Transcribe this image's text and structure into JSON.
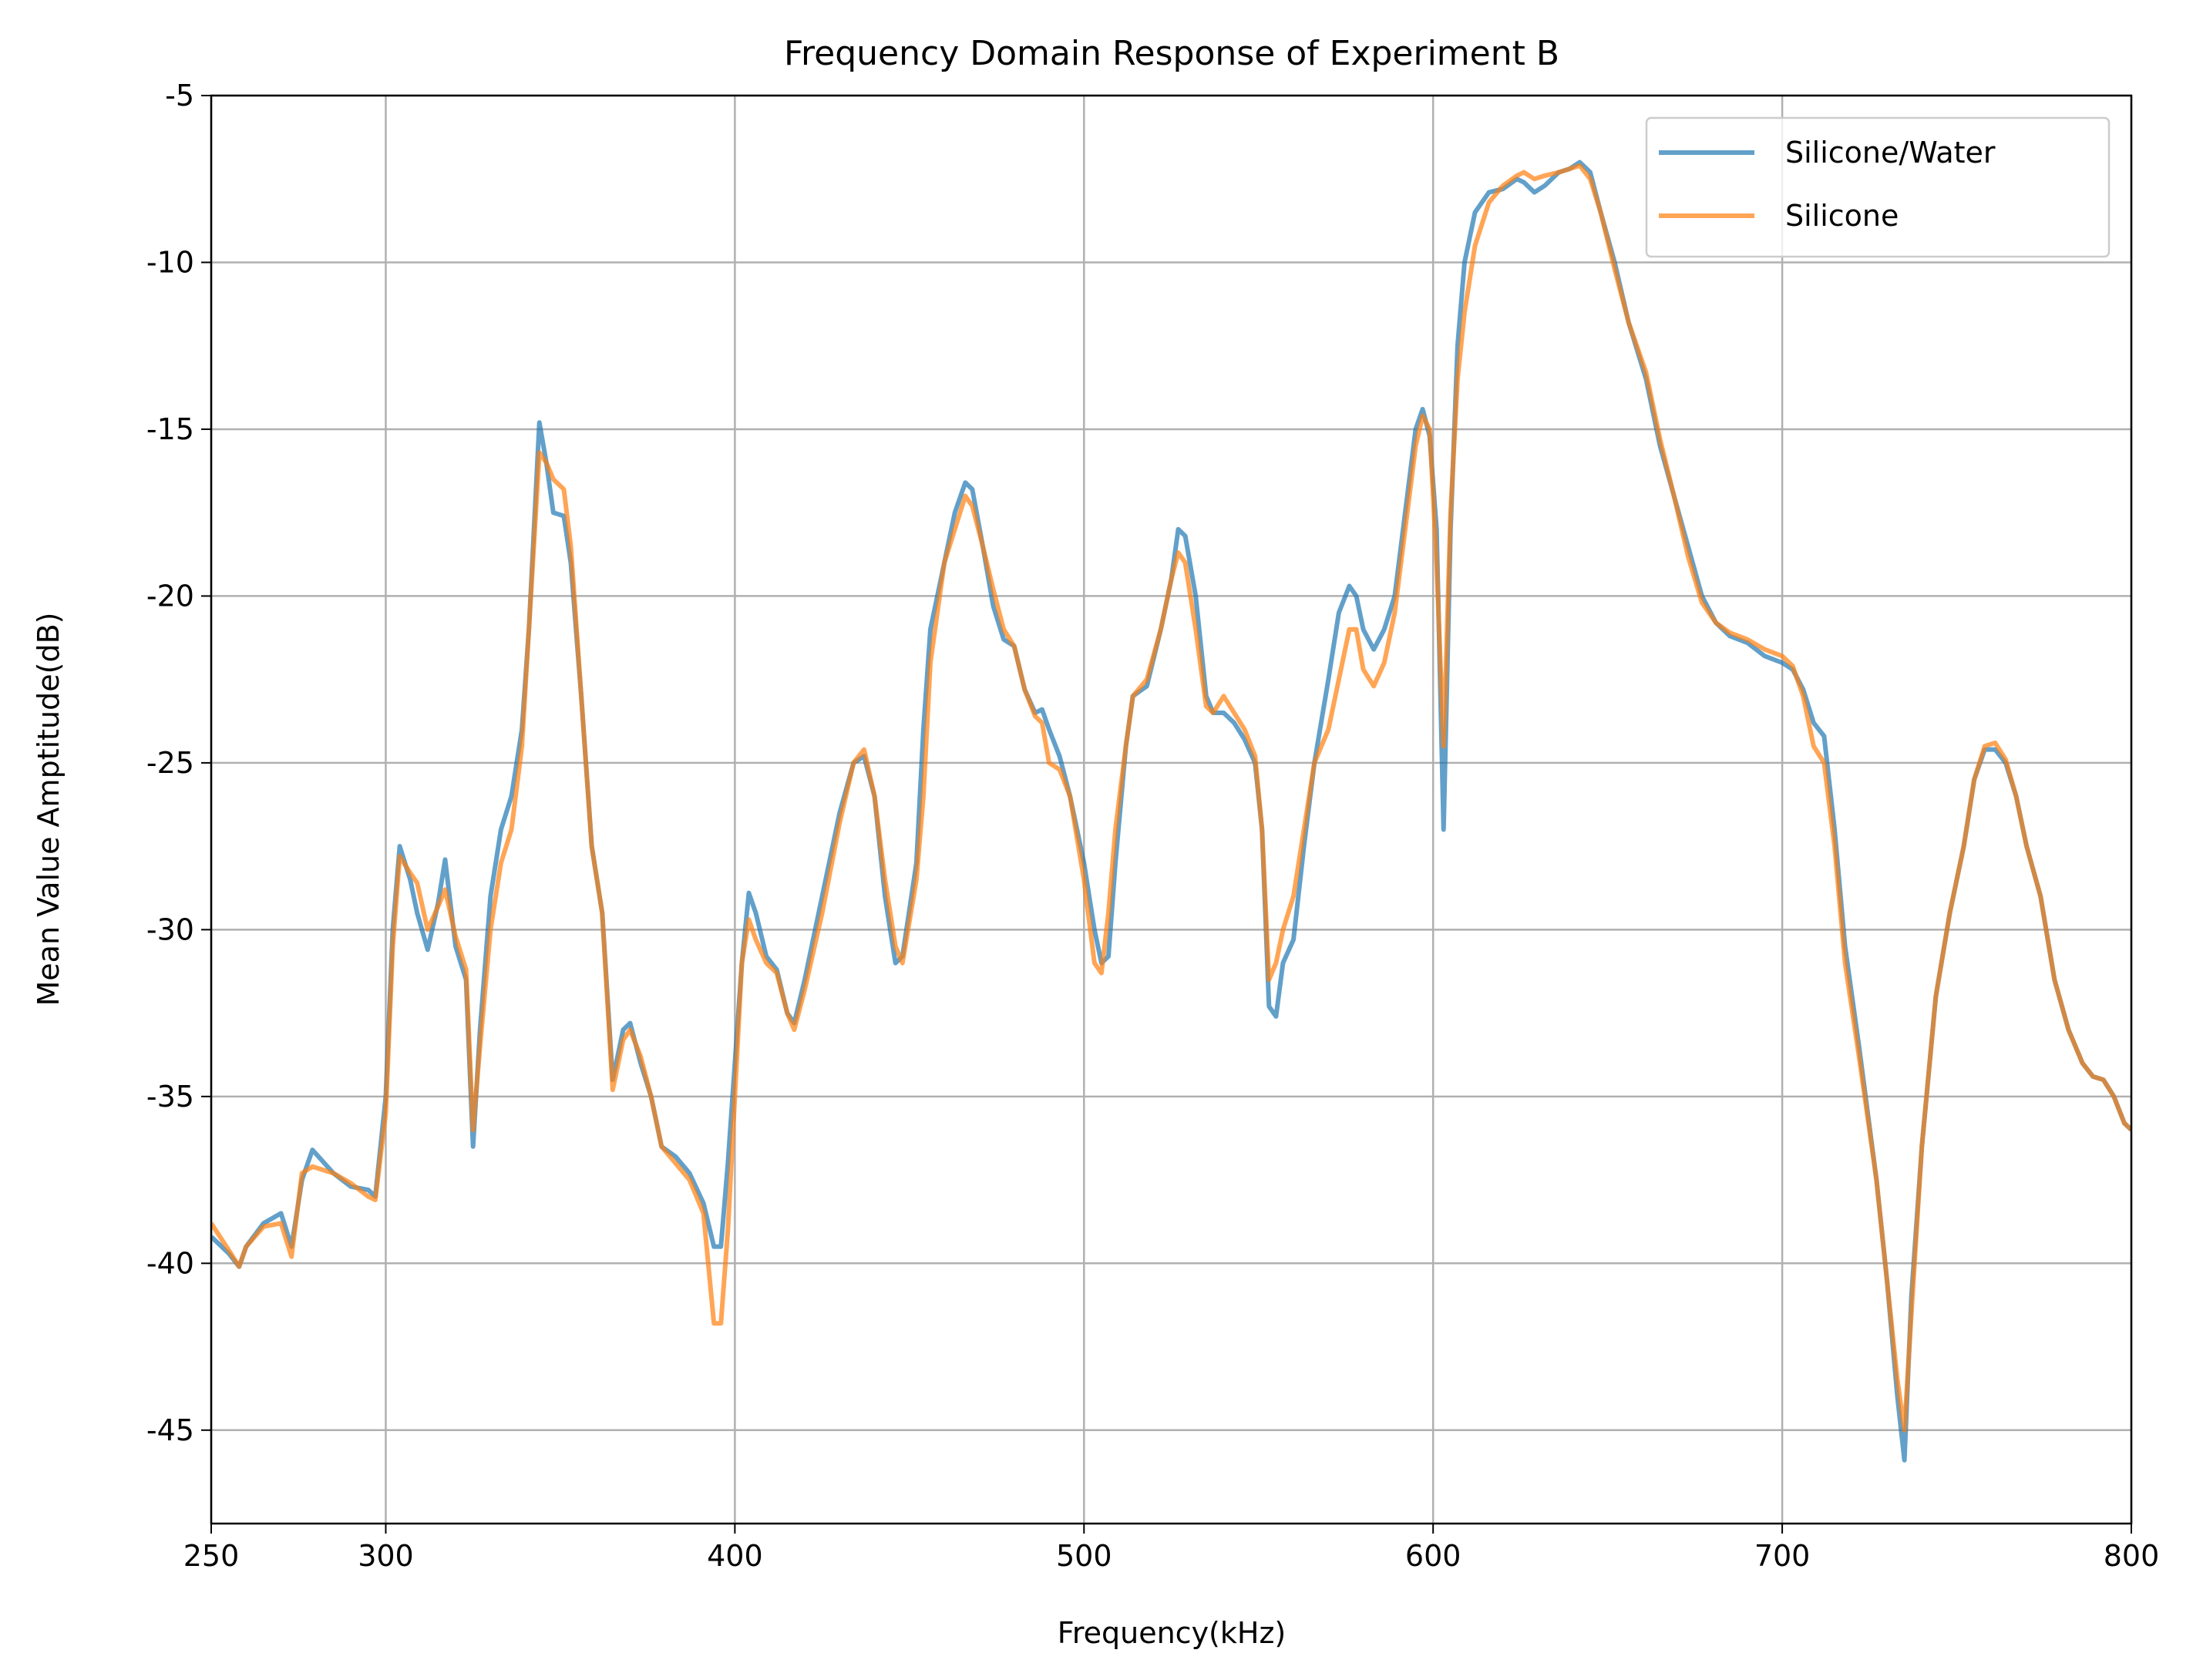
{
  "chart_data": {
    "type": "line",
    "title": "Frequency Domain Response of Experiment B",
    "xlabel": "Frequency(kHz)",
    "ylabel": "Mean Value Amptitude(dB)",
    "xlim": [
      250,
      800
    ],
    "xticks": [
      250,
      300,
      400,
      500,
      600,
      700,
      800
    ],
    "ylim": [
      -47.8,
      -5
    ],
    "yticks": [
      -45,
      -40,
      -35,
      -30,
      -25,
      -20,
      -15,
      -10,
      -5
    ],
    "grid": true,
    "legend": "upper right",
    "x": [
      250,
      255,
      258,
      260,
      265,
      270,
      273,
      276,
      279,
      285,
      290,
      295,
      297,
      300,
      302,
      304,
      307,
      309,
      312,
      315,
      317,
      320,
      323,
      325,
      327,
      330,
      333,
      336,
      339,
      341,
      344,
      346,
      348,
      351,
      353,
      356,
      359,
      362,
      365,
      368,
      370,
      373,
      376,
      379,
      383,
      387,
      391,
      394,
      396,
      398,
      400,
      402,
      404,
      406,
      409,
      412,
      415,
      417,
      420,
      425,
      430,
      434,
      437,
      440,
      443,
      446,
      448,
      452,
      454,
      456,
      460,
      463,
      466,
      468,
      471,
      474,
      477,
      480,
      483,
      486,
      488,
      490,
      493,
      496,
      500,
      503,
      505,
      507,
      509,
      512,
      514,
      518,
      522,
      525,
      527,
      529,
      532,
      535,
      537,
      540,
      543,
      546,
      549,
      551,
      553,
      555,
      557,
      560,
      563,
      566,
      570,
      573,
      576,
      578,
      580,
      583,
      586,
      589,
      592,
      595,
      597,
      599,
      601,
      603,
      605,
      607,
      609,
      612,
      616,
      620,
      624,
      626,
      629,
      632,
      636,
      639,
      642,
      645,
      648,
      652,
      656,
      661,
      665,
      669,
      673,
      677,
      681,
      685,
      690,
      695,
      700,
      703,
      706,
      709,
      712,
      715,
      718,
      722,
      727,
      730,
      733,
      735,
      737,
      740,
      744,
      748,
      752,
      755,
      758,
      761,
      764,
      767,
      770,
      774,
      778,
      782,
      786,
      789,
      792,
      795,
      798,
      800
    ],
    "series": [
      {
        "name": "Silicone/Water",
        "color": "#1f77b4",
        "values": [
          -39.2,
          -39.7,
          -40.1,
          -39.5,
          -38.8,
          -38.5,
          -39.5,
          -37.5,
          -36.6,
          -37.3,
          -37.7,
          -37.8,
          -38.0,
          -35.0,
          -30.0,
          -27.5,
          -28.5,
          -29.5,
          -30.6,
          -29.2,
          -27.9,
          -30.5,
          -31.5,
          -36.5,
          -33.0,
          -29.0,
          -27.0,
          -26.0,
          -24.0,
          -21.0,
          -14.8,
          -16.0,
          -17.5,
          -17.6,
          -19.0,
          -23.0,
          -27.5,
          -29.5,
          -34.5,
          -33.0,
          -32.8,
          -34.0,
          -35.0,
          -36.5,
          -36.8,
          -37.3,
          -38.2,
          -39.5,
          -39.5,
          -37.0,
          -34.0,
          -31.0,
          -28.9,
          -29.5,
          -30.8,
          -31.2,
          -32.5,
          -32.8,
          -31.5,
          -29.0,
          -26.5,
          -25.0,
          -24.8,
          -26.0,
          -29.0,
          -31.0,
          -30.8,
          -28.0,
          -24.0,
          -21.0,
          -19.0,
          -17.5,
          -16.6,
          -16.8,
          -18.5,
          -20.3,
          -21.3,
          -21.5,
          -22.8,
          -23.5,
          -23.4,
          -24.0,
          -24.8,
          -26.0,
          -28.0,
          -30.0,
          -31.0,
          -30.8,
          -28.0,
          -24.5,
          -23.0,
          -22.7,
          -21.0,
          -19.5,
          -18.0,
          -18.2,
          -20.0,
          -23.0,
          -23.5,
          -23.5,
          -23.8,
          -24.3,
          -25.0,
          -27.0,
          -32.3,
          -32.6,
          -31.0,
          -30.3,
          -27.5,
          -25.0,
          -22.5,
          -20.5,
          -19.7,
          -20.0,
          -21.0,
          -21.6,
          -21.0,
          -20.0,
          -17.5,
          -15.0,
          -14.4,
          -15.2,
          -18.0,
          -27.0,
          -18.0,
          -12.5,
          -10.0,
          -8.5,
          -7.9,
          -7.8,
          -7.5,
          -7.6,
          -7.9,
          -7.7,
          -7.3,
          -7.2,
          -7.0,
          -7.3,
          -8.5,
          -10.0,
          -11.8,
          -13.5,
          -15.5,
          -17.0,
          -18.5,
          -20.0,
          -20.8,
          -21.2,
          -21.4,
          -21.8,
          -22.0,
          -22.2,
          -22.8,
          -23.8,
          -24.2,
          -27.0,
          -30.5,
          -33.5,
          -37.5,
          -40.5,
          -44.0,
          -45.9,
          -41.0,
          -36.5,
          -32.0,
          -29.5,
          -27.5,
          -25.5,
          -24.6,
          -24.6,
          -25.0,
          -26.0,
          -27.5,
          -29.0,
          -31.5,
          -33.0,
          -34.0,
          -34.4,
          -34.5,
          -35.0,
          -35.8,
          -36.0
        ]
      },
      {
        "name": "Silicone",
        "color": "#ff7f0e",
        "values": [
          -38.8,
          -39.6,
          -40.1,
          -39.5,
          -38.9,
          -38.8,
          -39.8,
          -37.3,
          -37.1,
          -37.3,
          -37.6,
          -38.0,
          -38.1,
          -35.5,
          -30.5,
          -27.8,
          -28.3,
          -28.6,
          -30.0,
          -29.3,
          -28.8,
          -30.2,
          -31.2,
          -36.0,
          -33.5,
          -30.0,
          -28.0,
          -27.0,
          -24.5,
          -21.0,
          -15.7,
          -16.0,
          -16.5,
          -16.8,
          -18.5,
          -23.0,
          -27.5,
          -29.5,
          -34.8,
          -33.3,
          -33.0,
          -33.8,
          -35.0,
          -36.5,
          -37.0,
          -37.5,
          -38.5,
          -41.8,
          -41.8,
          -39.0,
          -35.0,
          -31.0,
          -29.7,
          -30.3,
          -31.0,
          -31.3,
          -32.5,
          -33.0,
          -31.8,
          -29.5,
          -26.8,
          -25.0,
          -24.6,
          -26.0,
          -28.5,
          -30.5,
          -31.0,
          -28.5,
          -26.0,
          -22.0,
          -19.0,
          -18.0,
          -17.0,
          -17.3,
          -18.5,
          -19.8,
          -21.0,
          -21.5,
          -22.8,
          -23.6,
          -23.8,
          -25.0,
          -25.2,
          -26.0,
          -28.5,
          -31.0,
          -31.3,
          -29.5,
          -27.0,
          -24.5,
          -23.0,
          -22.5,
          -21.0,
          -19.5,
          -18.7,
          -19.0,
          -21.0,
          -23.3,
          -23.5,
          -23.0,
          -23.5,
          -24.0,
          -24.8,
          -27.0,
          -31.5,
          -31.0,
          -30.0,
          -29.0,
          -27.0,
          -25.0,
          -24.0,
          -22.5,
          -21.0,
          -21.0,
          -22.2,
          -22.7,
          -22.0,
          -20.5,
          -18.0,
          -15.5,
          -14.6,
          -15.0,
          -19.0,
          -24.5,
          -17.5,
          -13.5,
          -11.5,
          -9.5,
          -8.2,
          -7.7,
          -7.4,
          -7.3,
          -7.5,
          -7.4,
          -7.3,
          -7.2,
          -7.1,
          -7.5,
          -8.5,
          -10.2,
          -11.8,
          -13.3,
          -15.3,
          -17.0,
          -18.8,
          -20.2,
          -20.8,
          -21.1,
          -21.3,
          -21.6,
          -21.8,
          -22.1,
          -23.0,
          -24.5,
          -25.0,
          -27.5,
          -31.0,
          -33.8,
          -37.5,
          -40.5,
          -43.5,
          -45.0,
          -41.5,
          -36.5,
          -32.0,
          -29.5,
          -27.5,
          -25.5,
          -24.5,
          -24.4,
          -24.9,
          -26.0,
          -27.5,
          -29.0,
          -31.5,
          -33.0,
          -34.0,
          -34.4,
          -34.5,
          -35.0,
          -35.8,
          -36.0
        ]
      }
    ]
  }
}
